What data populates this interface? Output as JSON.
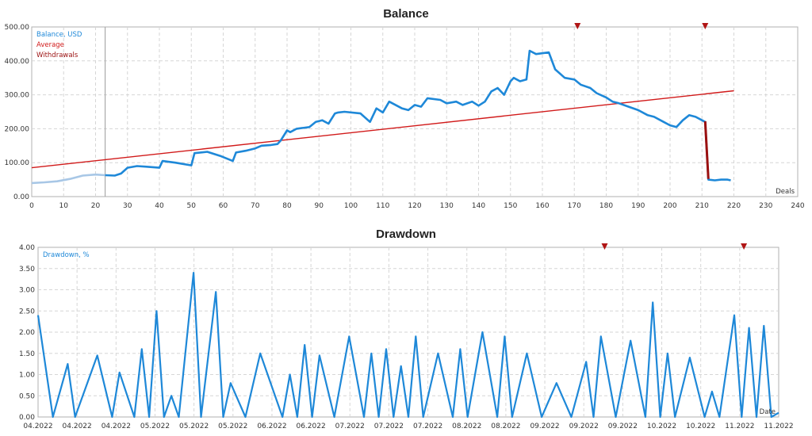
{
  "chart_data": [
    {
      "type": "line",
      "title": "Balance",
      "xlabel": "Deals",
      "legend": [
        "Balance, USD",
        "Average",
        "Withdrawals"
      ],
      "legend_placement": "top-left",
      "grid": true,
      "xlim": [
        0,
        240
      ],
      "ylim": [
        0,
        500
      ],
      "x_ticks": [
        "0",
        "10",
        "20",
        "30",
        "40",
        "50",
        "60",
        "70",
        "80",
        "90",
        "100",
        "110",
        "120",
        "130",
        "140",
        "150",
        "160",
        "170",
        "180",
        "190",
        "200",
        "210",
        "220",
        "230",
        "240"
      ],
      "y_ticks": [
        "0.00",
        "100.00",
        "200.00",
        "300.00",
        "400.00",
        "500.00"
      ],
      "cursor_x": 23,
      "series": [
        {
          "name": "Balance, USD",
          "color": "#1e88d8",
          "x": [
            0,
            4,
            8,
            12,
            16,
            20,
            23,
            26,
            28,
            30,
            33,
            36,
            40,
            41,
            45,
            50,
            51,
            55,
            59,
            63,
            64,
            67,
            70,
            72,
            75,
            77,
            78,
            80,
            81,
            83,
            87,
            89,
            91,
            93,
            95,
            96,
            98,
            103,
            106,
            108,
            110,
            112,
            116,
            118,
            120,
            122,
            124,
            128,
            130,
            133,
            135,
            138,
            140,
            142,
            144,
            146,
            148,
            150,
            151,
            153,
            155,
            156,
            158,
            162,
            164,
            167,
            170,
            172,
            175,
            177,
            180,
            182,
            184,
            187,
            190,
            193,
            195,
            198,
            200,
            202,
            204,
            206,
            208,
            210,
            211,
            212,
            214,
            216,
            218,
            219
          ],
          "y": [
            40,
            42,
            45,
            52,
            62,
            65,
            63,
            62,
            68,
            85,
            90,
            88,
            85,
            105,
            100,
            92,
            128,
            132,
            120,
            105,
            130,
            135,
            142,
            150,
            152,
            155,
            165,
            195,
            190,
            200,
            205,
            220,
            225,
            215,
            245,
            248,
            250,
            245,
            220,
            260,
            248,
            280,
            260,
            255,
            270,
            265,
            290,
            285,
            275,
            280,
            270,
            280,
            268,
            280,
            310,
            320,
            300,
            340,
            350,
            340,
            345,
            430,
            420,
            425,
            375,
            350,
            345,
            330,
            320,
            305,
            292,
            280,
            275,
            265,
            255,
            240,
            235,
            220,
            210,
            205,
            225,
            240,
            235,
            225,
            220,
            50,
            48,
            50,
            50,
            48
          ],
          "faded_until_x": 23
        },
        {
          "name": "Average",
          "color": "#d11a1a",
          "x": [
            0,
            220
          ],
          "y": [
            85,
            312
          ]
        },
        {
          "name": "Withdrawals",
          "color": "#9b1010",
          "x": [
            211,
            212
          ],
          "y": [
            222,
            52
          ]
        }
      ],
      "markers": [
        {
          "x": 171,
          "symbol": "withdrawal-marker",
          "color": "#b01515"
        },
        {
          "x": 211,
          "symbol": "withdrawal-marker",
          "color": "#b01515"
        }
      ]
    },
    {
      "type": "line",
      "title": "Drawdown",
      "xlabel": "Date",
      "legend": [
        "Drawdown, %"
      ],
      "legend_placement": "top-left",
      "grid": true,
      "ylim": [
        0,
        4
      ],
      "x_ticks": [
        "04.2022",
        "04.2022",
        "04.2022",
        "05.2022",
        "05.2022",
        "05.2022",
        "06.2022",
        "06.2022",
        "07.2022",
        "07.2022",
        "07.2022",
        "08.2022",
        "08.2022",
        "09.2022",
        "09.2022",
        "09.2022",
        "10.2022",
        "10.2022",
        "11.2022",
        "11.2022"
      ],
      "y_ticks": [
        "0.00",
        "0.50",
        "1.00",
        "1.50",
        "2.00",
        "2.50",
        "3.00",
        "3.50",
        "4.00"
      ],
      "series": [
        {
          "name": "Drawdown, %",
          "color": "#1e88d8",
          "x": [
            0,
            2,
            4,
            5,
            8,
            10,
            11,
            13,
            14,
            15,
            16,
            17,
            18,
            19,
            21,
            22,
            24,
            25,
            26,
            28,
            30,
            33,
            34,
            35,
            36,
            37,
            38,
            40,
            42,
            44,
            45,
            46,
            47,
            48,
            49,
            50,
            51,
            52,
            54,
            56,
            57,
            58,
            60,
            62,
            63,
            64,
            66,
            68,
            70,
            72,
            74,
            75,
            76,
            78,
            80,
            82,
            83,
            84,
            85,
            86,
            88,
            90,
            91,
            92,
            94,
            95,
            96,
            97,
            98,
            99,
            100
          ],
          "y": [
            2.4,
            0,
            1.25,
            0,
            1.45,
            0,
            1.05,
            0,
            1.6,
            0,
            2.5,
            0,
            0.5,
            0,
            3.4,
            0,
            2.95,
            0,
            0.8,
            0,
            1.5,
            0,
            1.0,
            0,
            1.7,
            0,
            1.45,
            0,
            1.9,
            0,
            1.5,
            0,
            1.6,
            0,
            1.2,
            0,
            1.9,
            0,
            1.5,
            0,
            1.6,
            0,
            2.0,
            0,
            1.9,
            0,
            1.5,
            0,
            0.8,
            0,
            1.3,
            0,
            1.9,
            0,
            1.8,
            0,
            2.7,
            0,
            1.5,
            0,
            1.4,
            0,
            0.6,
            0,
            2.4,
            0,
            2.1,
            0,
            2.15,
            0,
            0.1
          ],
          "note": "estimated approximate shape"
        }
      ],
      "markers": [
        {
          "x_frac": 0.765,
          "symbol": "withdrawal-marker",
          "color": "#b01515"
        },
        {
          "x_frac": 0.953,
          "symbol": "withdrawal-marker",
          "color": "#b01515"
        }
      ]
    }
  ]
}
